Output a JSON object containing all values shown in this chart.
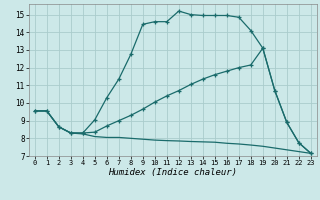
{
  "xlabel": "Humidex (Indice chaleur)",
  "bg_color": "#cce8e8",
  "grid_color": "#aacccc",
  "line_color": "#1a6b6b",
  "xlim": [
    -0.5,
    23.5
  ],
  "ylim": [
    7,
    15.6
  ],
  "xticks": [
    0,
    1,
    2,
    3,
    4,
    5,
    6,
    7,
    8,
    9,
    10,
    11,
    12,
    13,
    14,
    15,
    16,
    17,
    18,
    19,
    20,
    21,
    22,
    23
  ],
  "yticks": [
    7,
    8,
    9,
    10,
    11,
    12,
    13,
    14,
    15
  ],
  "series": [
    {
      "x": [
        0,
        1,
        2,
        3,
        4,
        5,
        6,
        7,
        8,
        9,
        10,
        11,
        12,
        13,
        14,
        15,
        16,
        17,
        18,
        19,
        20,
        21,
        22,
        23
      ],
      "y": [
        9.55,
        9.55,
        8.65,
        8.3,
        8.3,
        9.05,
        10.3,
        11.35,
        12.75,
        14.45,
        14.6,
        14.6,
        15.2,
        15.0,
        14.95,
        14.95,
        14.95,
        14.85,
        14.1,
        13.1,
        10.7,
        8.9,
        7.75,
        7.15
      ],
      "marker": true
    },
    {
      "x": [
        0,
        1,
        2,
        3,
        4,
        5,
        6,
        7,
        8,
        9,
        10,
        11,
        12,
        13,
        14,
        15,
        16,
        17,
        18,
        19,
        20,
        21,
        22,
        23
      ],
      "y": [
        9.55,
        9.55,
        8.65,
        8.3,
        8.3,
        8.35,
        8.7,
        9.0,
        9.3,
        9.65,
        10.05,
        10.4,
        10.7,
        11.05,
        11.35,
        11.6,
        11.8,
        12.0,
        12.15,
        13.1,
        10.7,
        8.9,
        7.75,
        7.15
      ],
      "marker": true
    },
    {
      "x": [
        0,
        1,
        2,
        3,
        4,
        5,
        6,
        7,
        8,
        9,
        10,
        11,
        12,
        13,
        14,
        15,
        16,
        17,
        18,
        19,
        20,
        21,
        22,
        23
      ],
      "y": [
        9.55,
        9.55,
        8.65,
        8.3,
        8.25,
        8.1,
        8.05,
        8.05,
        8.0,
        7.95,
        7.9,
        7.87,
        7.85,
        7.82,
        7.8,
        7.78,
        7.72,
        7.68,
        7.62,
        7.55,
        7.45,
        7.35,
        7.25,
        7.15
      ],
      "marker": false
    }
  ]
}
